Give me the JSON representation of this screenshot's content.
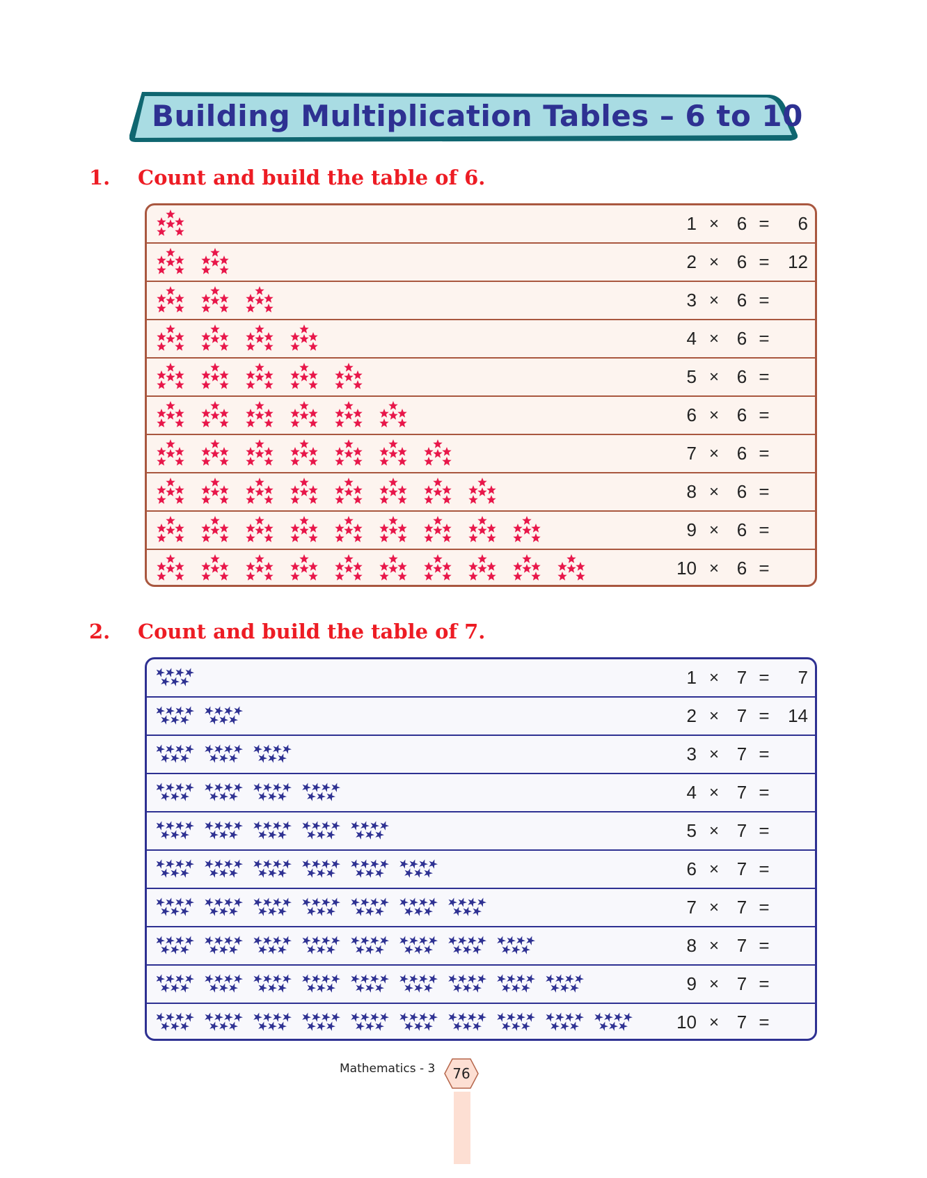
{
  "title": "Building Multiplication Tables – 6 to 10",
  "colors": {
    "title": "#2e3192",
    "banner": "#a9dce3",
    "banner_edge": "#0f6670",
    "heading": "#ed1c24",
    "table6_border": "#a9573f",
    "table6_star": "#e8174a",
    "table7_border": "#2e3192",
    "table7_star": "#2e3192"
  },
  "questions": [
    {
      "number": "1.",
      "heading": "Count and build the table of 6.",
      "multiplier": "6",
      "star_icon": "star-icon",
      "stars_per_group": 6,
      "rows": [
        {
          "m": "1",
          "times": "×",
          "eq": "=",
          "answer": "6",
          "groups": 1
        },
        {
          "m": "2",
          "times": "×",
          "eq": "=",
          "answer": "12",
          "groups": 2
        },
        {
          "m": "3",
          "times": "×",
          "eq": "=",
          "answer": "",
          "groups": 3
        },
        {
          "m": "4",
          "times": "×",
          "eq": "=",
          "answer": "",
          "groups": 4
        },
        {
          "m": "5",
          "times": "×",
          "eq": "=",
          "answer": "",
          "groups": 5
        },
        {
          "m": "6",
          "times": "×",
          "eq": "=",
          "answer": "",
          "groups": 6
        },
        {
          "m": "7",
          "times": "×",
          "eq": "=",
          "answer": "",
          "groups": 7
        },
        {
          "m": "8",
          "times": "×",
          "eq": "=",
          "answer": "",
          "groups": 8
        },
        {
          "m": "9",
          "times": "×",
          "eq": "=",
          "answer": "",
          "groups": 9
        },
        {
          "m": "10",
          "times": "×",
          "eq": "=",
          "answer": "",
          "groups": 10
        }
      ]
    },
    {
      "number": "2.",
      "heading": "Count and build the table of 7.",
      "multiplier": "7",
      "star_icon": "pinwheel-star-icon",
      "stars_per_group": 7,
      "rows": [
        {
          "m": "1",
          "times": "×",
          "eq": "=",
          "answer": "7",
          "groups": 1
        },
        {
          "m": "2",
          "times": "×",
          "eq": "=",
          "answer": "14",
          "groups": 2
        },
        {
          "m": "3",
          "times": "×",
          "eq": "=",
          "answer": "",
          "groups": 3
        },
        {
          "m": "4",
          "times": "×",
          "eq": "=",
          "answer": "",
          "groups": 4
        },
        {
          "m": "5",
          "times": "×",
          "eq": "=",
          "answer": "",
          "groups": 5
        },
        {
          "m": "6",
          "times": "×",
          "eq": "=",
          "answer": "",
          "groups": 6
        },
        {
          "m": "7",
          "times": "×",
          "eq": "=",
          "answer": "",
          "groups": 7
        },
        {
          "m": "8",
          "times": "×",
          "eq": "=",
          "answer": "",
          "groups": 8
        },
        {
          "m": "9",
          "times": "×",
          "eq": "=",
          "answer": "",
          "groups": 9
        },
        {
          "m": "10",
          "times": "×",
          "eq": "=",
          "answer": "",
          "groups": 10
        }
      ]
    }
  ],
  "footer": {
    "book": "Mathematics - 3",
    "page": "76"
  }
}
